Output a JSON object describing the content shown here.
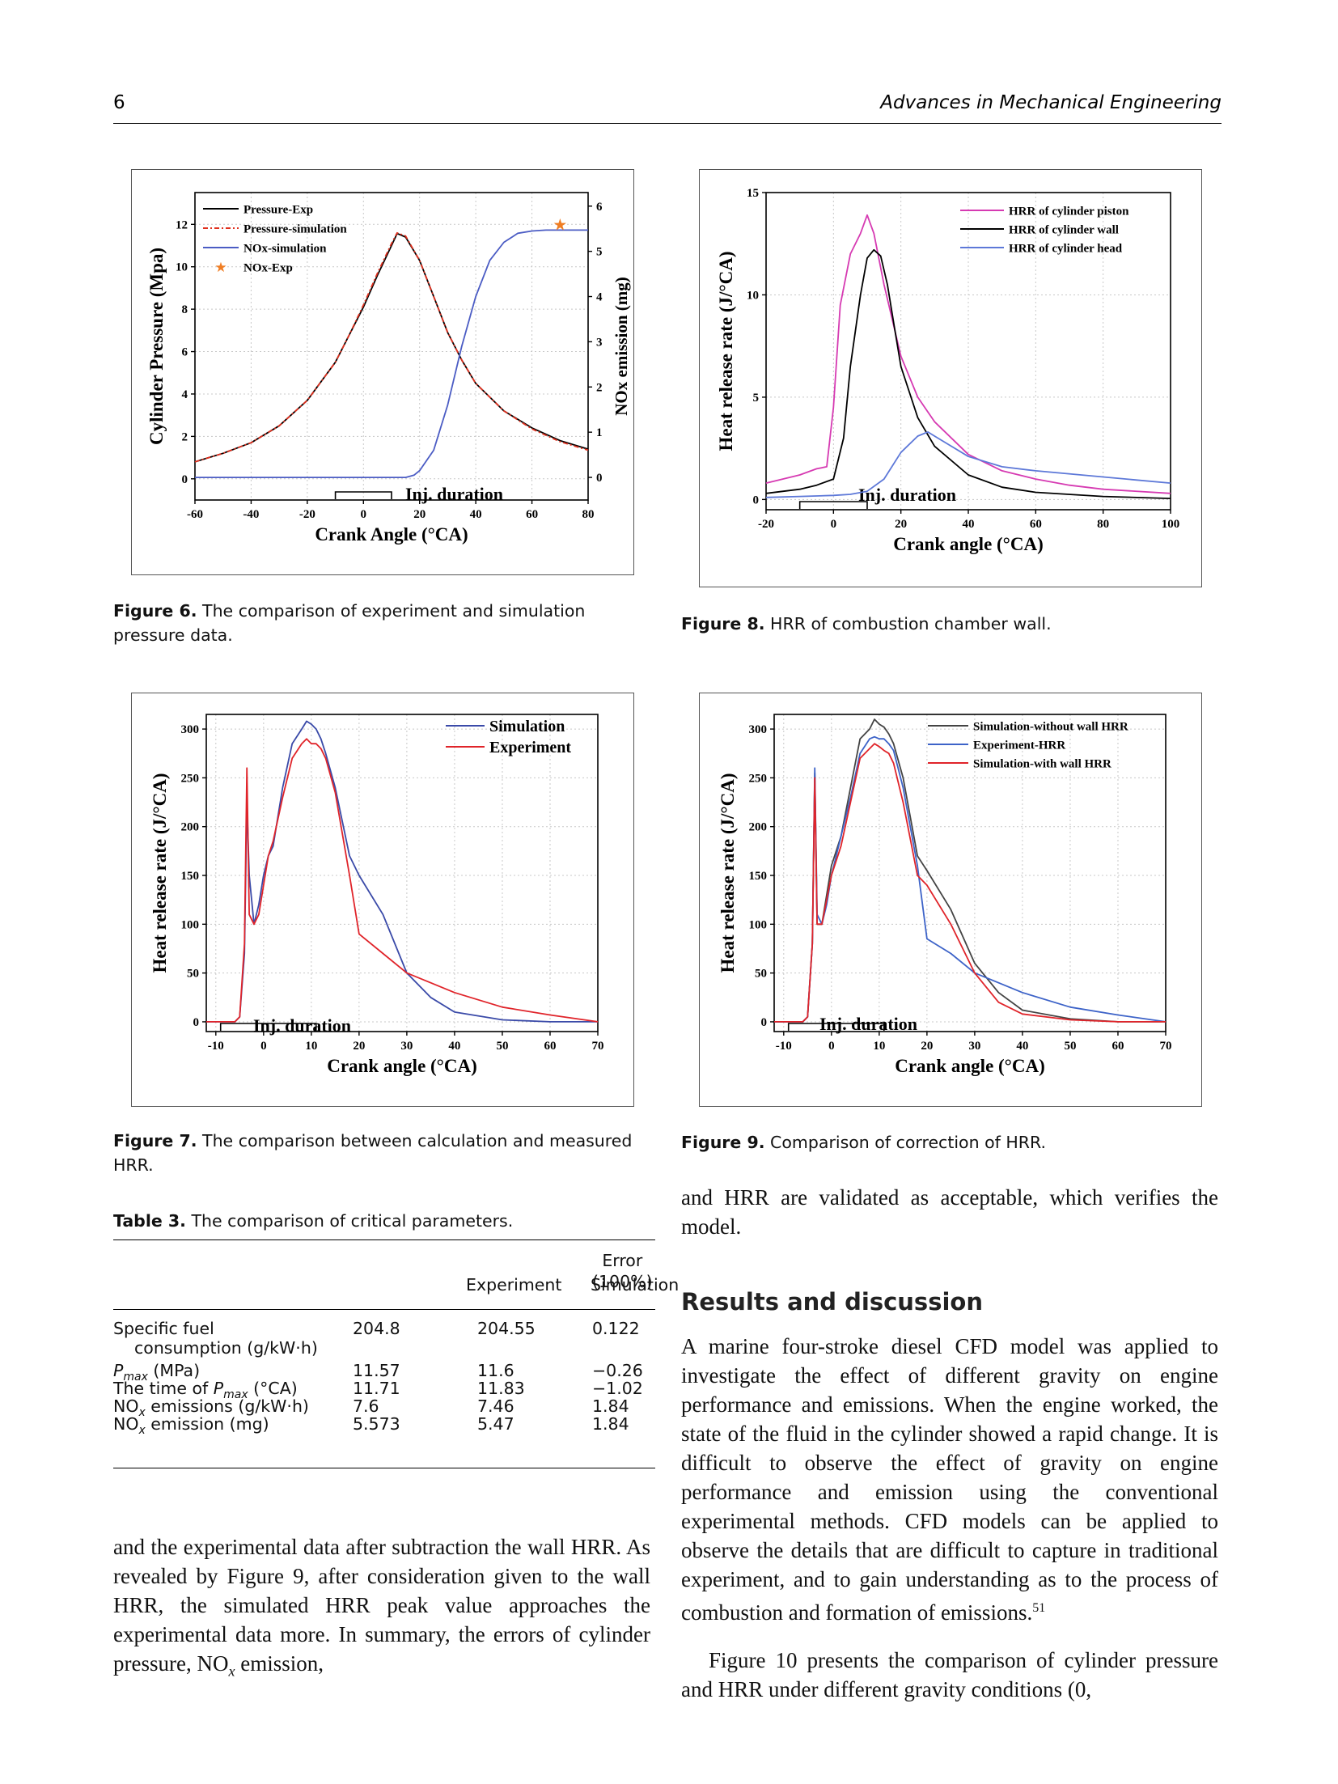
{
  "header": {
    "page_number": "6",
    "journal": "Advances in Mechanical Engineering"
  },
  "figure6": {
    "caption_label": "Figure 6.",
    "caption_text": "The comparison of experiment and simulation pressure data.",
    "chart_data": {
      "type": "line",
      "xlabel": "Crank Angle  (°CA)",
      "ylabel": "Cylinder Pressure  (Mpa)",
      "y2label": "NOx emission  (mg)",
      "xlim": [
        -60,
        80
      ],
      "ylim": [
        -1,
        13.5
      ],
      "y2lim": [
        -0.5,
        6.3
      ],
      "xticks": [
        "-60",
        "-40",
        "-20",
        "0",
        "20",
        "40",
        "60",
        "80"
      ],
      "yticks": [
        "0",
        "2",
        "4",
        "6",
        "8",
        "10",
        "12"
      ],
      "y2ticks": [
        "0",
        "1",
        "2",
        "3",
        "4",
        "5",
        "6"
      ],
      "annotation": "Inj. duration",
      "legend": [
        "Pressure-Exp",
        "Pressure-simulation",
        "NOx-simulation",
        "NOx-Exp"
      ],
      "series": [
        {
          "name": "Pressure-Exp",
          "color": "#000000",
          "x": [
            -60,
            -50,
            -40,
            -30,
            -20,
            -10,
            -5,
            0,
            5,
            10,
            12,
            15,
            20,
            25,
            30,
            35,
            40,
            50,
            60,
            70,
            80
          ],
          "y": [
            0.8,
            1.2,
            1.7,
            2.5,
            3.7,
            5.5,
            6.8,
            8.1,
            9.6,
            11.0,
            11.57,
            11.4,
            10.3,
            8.6,
            6.9,
            5.6,
            4.5,
            3.2,
            2.4,
            1.8,
            1.4
          ]
        },
        {
          "name": "Pressure-simulation",
          "color": "#e0301e",
          "x": [
            -60,
            -50,
            -40,
            -30,
            -20,
            -10,
            -5,
            0,
            5,
            10,
            12,
            15,
            20,
            25,
            30,
            35,
            40,
            50,
            60,
            70,
            80
          ],
          "y": [
            0.8,
            1.2,
            1.7,
            2.5,
            3.7,
            5.5,
            6.8,
            8.2,
            9.7,
            11.1,
            11.6,
            11.45,
            10.3,
            8.6,
            6.9,
            5.6,
            4.5,
            3.2,
            2.35,
            1.75,
            1.35
          ]
        },
        {
          "name": "NOx-simulation",
          "color": "#4b5cc4",
          "axis": "y2",
          "x": [
            -60,
            10,
            15,
            18,
            20,
            25,
            30,
            35,
            40,
            45,
            50,
            55,
            60,
            65,
            70,
            75,
            80
          ],
          "y": [
            0,
            0,
            0,
            0.05,
            0.15,
            0.6,
            1.6,
            2.9,
            4.0,
            4.8,
            5.2,
            5.4,
            5.45,
            5.47,
            5.47,
            5.47,
            5.47
          ]
        },
        {
          "name": "NOx-Exp",
          "color": "#f07e24",
          "axis": "y2",
          "marker": "star",
          "x": [
            70
          ],
          "y": [
            5.573
          ]
        }
      ]
    }
  },
  "figure8": {
    "caption_label": "Figure 8.",
    "caption_text": "HRR of combustion chamber wall.",
    "chart_data": {
      "type": "line",
      "xlabel": "Crank angle  (°CA)",
      "ylabel": "Heat release rate  (J/°CA)",
      "xlim": [
        -20,
        100
      ],
      "ylim": [
        -0.5,
        15
      ],
      "xticks": [
        "-20",
        "0",
        "20",
        "40",
        "60",
        "80",
        "100"
      ],
      "yticks": [
        "0",
        "5",
        "10",
        "15"
      ],
      "annotation": "Inj. duration",
      "legend": [
        "HRR of cylinder piston",
        "HRR of cylinder wall",
        "HRR of cylinder head"
      ],
      "series": [
        {
          "name": "HRR of cylinder piston",
          "color": "#d63ab2",
          "x": [
            -20,
            -10,
            -5,
            -2,
            0,
            2,
            5,
            8,
            10,
            12,
            15,
            20,
            25,
            30,
            40,
            50,
            60,
            70,
            80,
            100
          ],
          "y": [
            0.8,
            1.2,
            1.5,
            1.6,
            4.5,
            9.5,
            12.0,
            13.0,
            13.9,
            13.0,
            10.5,
            7.0,
            5.0,
            3.8,
            2.2,
            1.4,
            1.0,
            0.7,
            0.5,
            0.3
          ]
        },
        {
          "name": "HRR of cylinder wall",
          "color": "#000000",
          "x": [
            -20,
            -10,
            -5,
            0,
            3,
            5,
            8,
            10,
            12,
            14,
            16,
            18,
            20,
            25,
            30,
            40,
            50,
            60,
            80,
            100
          ],
          "y": [
            0.3,
            0.5,
            0.7,
            1.0,
            3.0,
            6.5,
            10.0,
            11.8,
            12.2,
            11.9,
            10.5,
            8.5,
            6.5,
            4.0,
            2.6,
            1.2,
            0.6,
            0.35,
            0.15,
            0.05
          ]
        },
        {
          "name": "HRR of cylinder head",
          "color": "#5d78d8",
          "x": [
            -20,
            -10,
            0,
            5,
            10,
            15,
            20,
            25,
            28,
            30,
            35,
            40,
            50,
            60,
            80,
            100
          ],
          "y": [
            0.1,
            0.15,
            0.2,
            0.25,
            0.4,
            1.0,
            2.3,
            3.1,
            3.3,
            3.1,
            2.6,
            2.1,
            1.6,
            1.4,
            1.1,
            0.8
          ]
        }
      ]
    }
  },
  "figure7": {
    "caption_label": "Figure 7.",
    "caption_text": "The comparison between calculation and measured HRR.",
    "chart_data": {
      "type": "line",
      "xlabel": "Crank angle  (°CA)",
      "ylabel": "Heat release rate  (J/°CA)",
      "xlim": [
        -12,
        70
      ],
      "ylim": [
        -10,
        315
      ],
      "xticks": [
        "-10",
        "0",
        "10",
        "20",
        "30",
        "40",
        "50",
        "60",
        "70"
      ],
      "yticks": [
        "0",
        "50",
        "100",
        "150",
        "200",
        "250",
        "300"
      ],
      "annotation": "Inj. duration",
      "legend": [
        "Simulation",
        "Experiment"
      ],
      "series": [
        {
          "name": "Simulation",
          "color": "#3a4aa8",
          "x": [
            -12,
            -6,
            -5,
            -4,
            -3.5,
            -3,
            -2,
            -1,
            0,
            1,
            2,
            4,
            6,
            8,
            9,
            10,
            11,
            12,
            13,
            15,
            18,
            20,
            25,
            30,
            35,
            40,
            50,
            60,
            70
          ],
          "y": [
            0,
            0,
            5,
            70,
            225,
            150,
            100,
            120,
            150,
            170,
            180,
            240,
            285,
            300,
            308,
            305,
            300,
            290,
            275,
            240,
            170,
            150,
            110,
            50,
            25,
            10,
            2,
            0,
            0
          ]
        },
        {
          "name": "Experiment",
          "color": "#e0242a",
          "x": [
            -12,
            -6,
            -5,
            -4,
            -3.5,
            -3,
            -2,
            -1,
            0,
            1,
            2,
            4,
            6,
            8,
            9,
            10,
            11,
            12,
            13,
            15,
            18,
            20,
            25,
            30,
            35,
            40,
            50,
            60,
            70
          ],
          "y": [
            0,
            0,
            5,
            80,
            260,
            110,
            100,
            110,
            140,
            170,
            185,
            230,
            270,
            285,
            290,
            285,
            285,
            280,
            270,
            235,
            150,
            90,
            70,
            50,
            40,
            30,
            15,
            7,
            0
          ]
        }
      ]
    }
  },
  "figure9": {
    "caption_label": "Figure 9.",
    "caption_text": "Comparison of correction of HRR.",
    "chart_data": {
      "type": "line",
      "xlabel": "Crank angle  (°CA)",
      "ylabel": "Heat release rate  (J/°CA)",
      "xlim": [
        -12,
        70
      ],
      "ylim": [
        -10,
        315
      ],
      "xticks": [
        "-10",
        "0",
        "10",
        "20",
        "30",
        "40",
        "50",
        "60",
        "70"
      ],
      "yticks": [
        "0",
        "50",
        "100",
        "150",
        "200",
        "250",
        "300"
      ],
      "annotation": "Inj. duration",
      "legend": [
        "Simulation-without wall HRR",
        "Experiment-HRR",
        "Simulation-with wall HRR"
      ],
      "series": [
        {
          "name": "Simulation-without wall HRR",
          "color": "#444444",
          "x": [
            -12,
            -6,
            -5,
            -4,
            -3.5,
            -3,
            -2,
            -1,
            0,
            2,
            4,
            6,
            8,
            9,
            10,
            11,
            12,
            13,
            15,
            18,
            20,
            25,
            30,
            35,
            40,
            50,
            60,
            70
          ],
          "y": [
            0,
            0,
            5,
            80,
            255,
            100,
            100,
            130,
            160,
            190,
            240,
            290,
            300,
            310,
            305,
            302,
            295,
            285,
            250,
            170,
            155,
            115,
            60,
            30,
            12,
            3,
            0,
            0
          ]
        },
        {
          "name": "Experiment-HRR",
          "color": "#3d63c8",
          "x": [
            -12,
            -6,
            -5,
            -4,
            -3.5,
            -3,
            -2,
            -1,
            0,
            2,
            4,
            6,
            8,
            9,
            10,
            11,
            12,
            13,
            15,
            18,
            20,
            25,
            30,
            35,
            40,
            50,
            60,
            70
          ],
          "y": [
            0,
            0,
            5,
            80,
            260,
            110,
            100,
            120,
            150,
            190,
            230,
            275,
            290,
            292,
            290,
            290,
            285,
            278,
            240,
            160,
            85,
            70,
            50,
            40,
            30,
            15,
            7,
            0
          ]
        },
        {
          "name": "Simulation-with wall HRR",
          "color": "#e0242a",
          "x": [
            -12,
            -6,
            -5,
            -4,
            -3.5,
            -3,
            -2,
            -1,
            0,
            2,
            4,
            6,
            8,
            9,
            10,
            11,
            12,
            13,
            15,
            18,
            20,
            25,
            30,
            35,
            40,
            50,
            60,
            70
          ],
          "y": [
            0,
            0,
            5,
            80,
            250,
            100,
            100,
            125,
            150,
            180,
            225,
            270,
            280,
            285,
            282,
            278,
            275,
            265,
            225,
            150,
            140,
            100,
            50,
            20,
            8,
            2,
            0,
            0
          ]
        }
      ]
    }
  },
  "table3": {
    "caption_label": "Table 3.",
    "caption_text": "The comparison of critical parameters.",
    "headers": [
      "Experiment",
      "Simulation",
      "Error",
      "(100%)"
    ],
    "rows": [
      {
        "label_line1": "Specific fuel",
        "label_line2": "consumption (g/kW·h)",
        "exp": "204.8",
        "sim": "204.55",
        "err": "0.122"
      },
      {
        "label_main": "P",
        "label_sub": "max",
        "label_rest": " (MPa)",
        "exp": "11.57",
        "sim": "11.6",
        "err": "−0.26"
      },
      {
        "label_main": "The time of P",
        "label_sub": "max",
        "label_rest": " (°CA)",
        "exp": "11.71",
        "sim": "11.83",
        "err": "−1.02"
      },
      {
        "label_main": "NO",
        "label_sub": "x",
        "label_rest": " emissions (g/kW·h)",
        "exp": "7.6",
        "sim": "7.46",
        "err": "1.84"
      },
      {
        "label_main": "NO",
        "label_sub": "x",
        "label_rest": " emission (mg)",
        "exp": "5.573",
        "sim": "5.47",
        "err": "1.84"
      }
    ]
  },
  "left_column_text": {
    "p1": "and the experimental data after subtraction the wall HRR. As revealed by Figure 9, after consideration given to the wall HRR, the simulated HRR peak value approaches the experimental data more. In summary, the errors of cylinder pressure, NO",
    "p1_sub": "x",
    "p1_end": " emission,"
  },
  "right_column_text": {
    "p0": "and HRR are validated as acceptable, which verifies the model.",
    "section_title": "Results and discussion",
    "p1": "A marine four-stroke diesel CFD model was applied to investigate the effect of different gravity on engine performance and emissions. When the engine worked, the state of the fluid in the cylinder showed a rapid change. It is difficult to observe the effect of gravity on engine performance and emission using the conventional experimental methods. CFD models can be applied to observe the details that are difficult to capture in traditional experiment, and to gain understanding as to the process of combustion and formation of emissions.",
    "p1_ref": "51",
    "p2": "Figure 10 presents the comparison of cylinder pressure and HRR under different gravity conditions (0,"
  }
}
